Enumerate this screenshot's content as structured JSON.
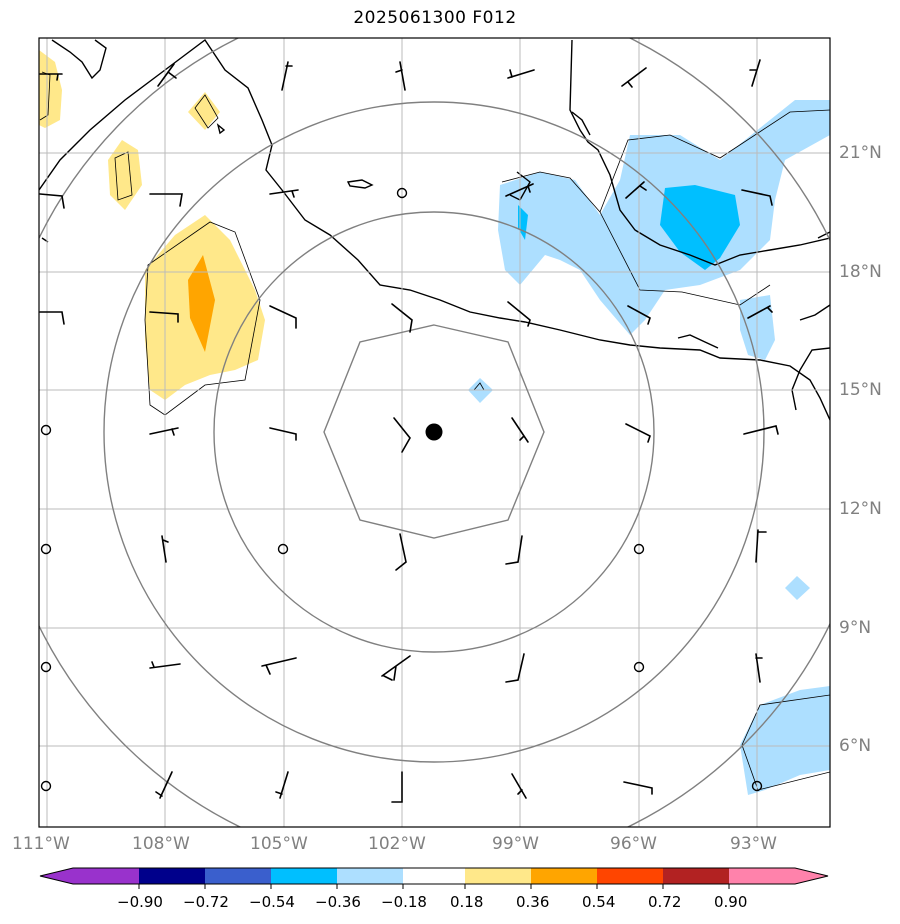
{
  "title": "2025061300 F012",
  "lon_labels": [
    "111°W",
    "108°W",
    "105°W",
    "102°W",
    "99°W",
    "96°W",
    "93°W"
  ],
  "lat_labels": [
    "21°N",
    "18°N",
    "15°N",
    "12°N",
    "9°N",
    "6°N"
  ],
  "colorbar": {
    "labels": [
      "−0.90",
      "−0.72",
      "−0.54",
      "−0.36",
      "−0.18",
      "0.18",
      "0.36",
      "0.54",
      "0.72",
      "0.90"
    ],
    "colors": [
      "#9932CC",
      "#00008B",
      "#3A5FCD",
      "#00BFFF",
      "#ADDFFF",
      "#FFFFFF",
      "#FFE88A",
      "#FFA500",
      "#FF4500",
      "#B22222",
      "#FF82AB"
    ]
  },
  "colors": {
    "grid": "#BBBBBB",
    "rings": "#808080",
    "coast": "#000000",
    "light_blue": "#ADDFFF",
    "mid_blue": "#00BFFF",
    "light_yellow": "#FFE88A",
    "orange": "#FFA500"
  },
  "storm_center": {
    "lon": "101.2°W",
    "lat": "13.9°N"
  }
}
